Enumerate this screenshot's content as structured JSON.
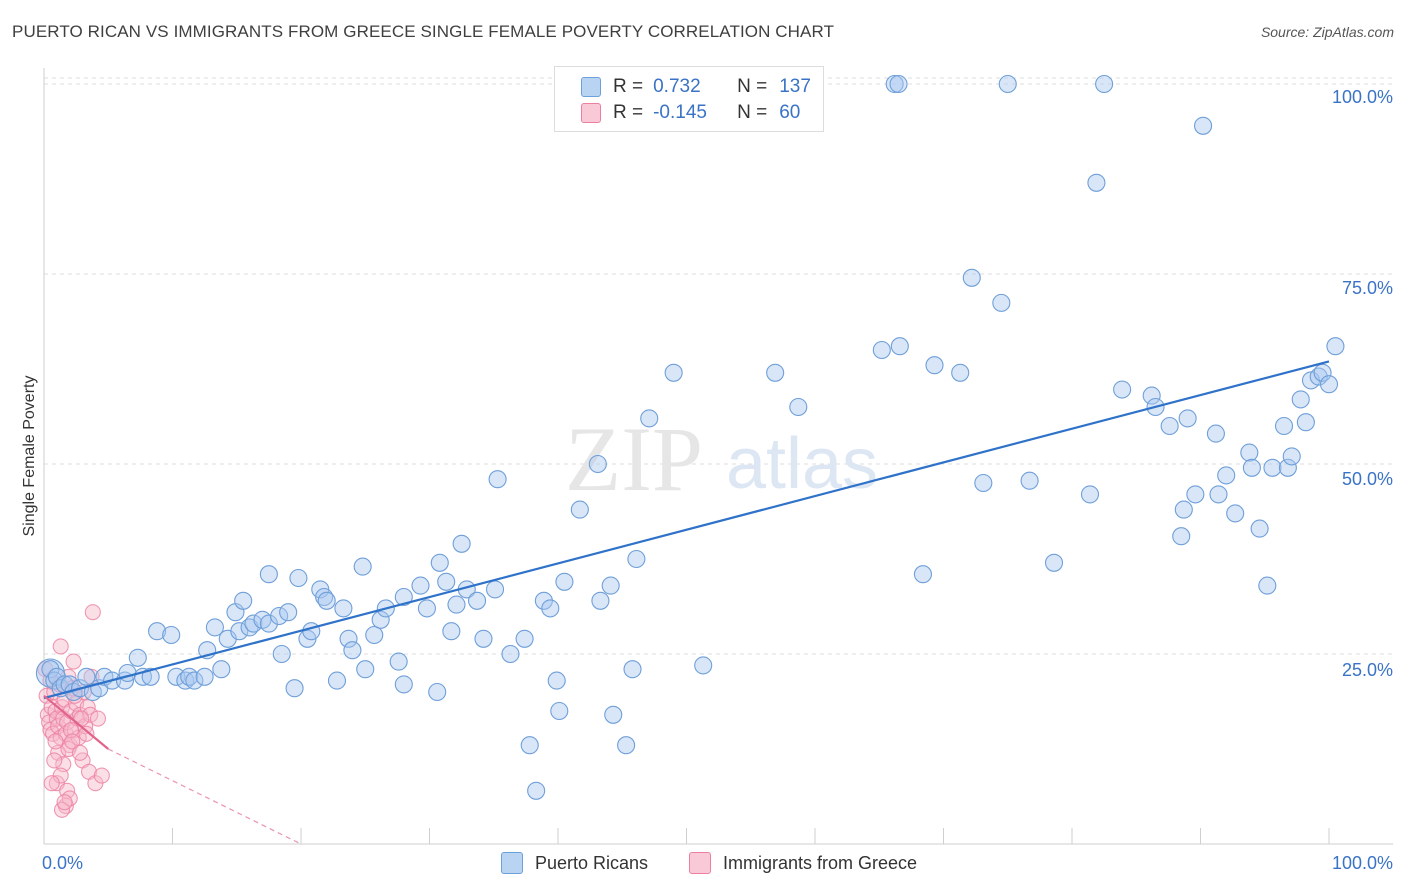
{
  "title": "PUERTO RICAN VS IMMIGRANTS FROM GREECE SINGLE FEMALE POVERTY CORRELATION CHART",
  "source": "Source: ZipAtlas.com",
  "watermark": {
    "zip": "ZIP",
    "atlas": "atlas"
  },
  "legend": {
    "series1": {
      "r_label": "R =",
      "r_value": "0.732",
      "n_label": "N =",
      "n_value": "137"
    },
    "series2": {
      "r_label": "R =",
      "r_value": "-0.145",
      "n_label": "N =",
      "n_value": "60"
    }
  },
  "colors": {
    "blue_fill": "#a9c8ef",
    "blue_stroke": "#6f9fd9",
    "blue_line": "#2f72c9",
    "pink_fill": "#f6b8ca",
    "pink_stroke": "#ec7fa0",
    "pink_line": "#e2648b",
    "axis_text": "#3a73c6"
  },
  "chart_data": {
    "type": "scatter",
    "title": "PUERTO RICAN VS IMMIGRANTS FROM GREECE SINGLE FEMALE POVERTY CORRELATION CHART",
    "xlabel": "",
    "ylabel": "Single Female Poverty",
    "xlim": [
      0,
      100
    ],
    "ylim": [
      0,
      103
    ],
    "x_tick_labels": [
      "0.0%",
      "100.0%"
    ],
    "y_ticks": [
      25,
      50,
      75,
      100
    ],
    "y_tick_labels": [
      "25.0%",
      "50.0%",
      "75.0%",
      "100.0%"
    ],
    "grid": "horizontal dashed",
    "legend_position": "bottom-center",
    "series": [
      {
        "name": "Puerto Ricans",
        "color": "#a9c8ef",
        "trend": {
          "x": [
            0,
            100
          ],
          "y": [
            19.2,
            63.5
          ]
        },
        "points": [
          [
            0.5,
            23
          ],
          [
            0.8,
            21.5
          ],
          [
            1,
            22
          ],
          [
            1.3,
            20.5
          ],
          [
            1.6,
            21
          ],
          [
            2,
            21
          ],
          [
            2.3,
            20
          ],
          [
            2.8,
            20.5
          ],
          [
            3.3,
            22
          ],
          [
            3.8,
            20
          ],
          [
            4.3,
            20.5
          ],
          [
            4.7,
            22
          ],
          [
            5.3,
            21.5
          ],
          [
            6.3,
            21.5
          ],
          [
            6.5,
            22.5
          ],
          [
            7.3,
            24.5
          ],
          [
            7.7,
            22
          ],
          [
            8.3,
            22
          ],
          [
            8.8,
            28
          ],
          [
            9.9,
            27.5
          ],
          [
            10.3,
            22
          ],
          [
            11,
            21.5
          ],
          [
            11.3,
            22
          ],
          [
            11.7,
            21.5
          ],
          [
            12.7,
            25.5
          ],
          [
            12.5,
            22
          ],
          [
            13.8,
            23
          ],
          [
            13.3,
            28.5
          ],
          [
            14.3,
            27
          ],
          [
            14.9,
            30.5
          ],
          [
            15.2,
            28
          ],
          [
            15.5,
            32
          ],
          [
            16,
            28.5
          ],
          [
            16.3,
            29
          ],
          [
            17,
            29.5
          ],
          [
            17.5,
            29
          ],
          [
            17.5,
            35.5
          ],
          [
            18.3,
            30
          ],
          [
            18.5,
            25
          ],
          [
            19,
            30.5
          ],
          [
            19.5,
            20.5
          ],
          [
            19.8,
            35
          ],
          [
            20.5,
            27
          ],
          [
            20.8,
            28
          ],
          [
            21.5,
            33.5
          ],
          [
            21.8,
            32.5
          ],
          [
            22,
            32
          ],
          [
            22.8,
            21.5
          ],
          [
            23.3,
            31
          ],
          [
            23.7,
            27
          ],
          [
            24,
            25.5
          ],
          [
            24.8,
            36.5
          ],
          [
            25,
            23
          ],
          [
            25.7,
            27.5
          ],
          [
            26.2,
            29.5
          ],
          [
            26.6,
            31
          ],
          [
            27.6,
            24
          ],
          [
            28,
            21
          ],
          [
            28,
            32.5
          ],
          [
            29.3,
            34
          ],
          [
            29.8,
            31
          ],
          [
            30.6,
            20
          ],
          [
            30.8,
            37
          ],
          [
            31.3,
            34.5
          ],
          [
            31.7,
            28
          ],
          [
            32.1,
            31.5
          ],
          [
            32.5,
            39.5
          ],
          [
            32.9,
            33.5
          ],
          [
            33.7,
            32
          ],
          [
            34.2,
            27
          ],
          [
            35.1,
            33.5
          ],
          [
            35.3,
            48
          ],
          [
            36.3,
            25
          ],
          [
            37.4,
            27
          ],
          [
            37.8,
            13
          ],
          [
            38.3,
            7
          ],
          [
            38.9,
            32
          ],
          [
            39.4,
            31
          ],
          [
            39.9,
            21.5
          ],
          [
            40.1,
            17.5
          ],
          [
            40.5,
            34.5
          ],
          [
            41.7,
            44
          ],
          [
            43.1,
            50
          ],
          [
            43.3,
            32
          ],
          [
            44.1,
            34
          ],
          [
            44.3,
            17
          ],
          [
            45.3,
            13
          ],
          [
            45.8,
            23
          ],
          [
            46.1,
            37.5
          ],
          [
            47.1,
            56
          ],
          [
            49,
            62
          ],
          [
            51.3,
            23.5
          ],
          [
            56.9,
            62
          ],
          [
            58.7,
            57.5
          ],
          [
            65.2,
            65
          ],
          [
            66.6,
            65.5
          ],
          [
            68.4,
            35.5
          ],
          [
            69.3,
            63
          ],
          [
            71.3,
            62
          ],
          [
            72.2,
            74.5
          ],
          [
            73.1,
            47.5
          ],
          [
            74.5,
            71.2
          ],
          [
            76.7,
            47.8
          ],
          [
            78.6,
            37
          ],
          [
            81.4,
            46
          ],
          [
            82.5,
            100
          ],
          [
            81.9,
            87
          ],
          [
            83.9,
            59.8
          ],
          [
            86.2,
            59
          ],
          [
            86.5,
            57.5
          ],
          [
            87.6,
            55
          ],
          [
            88.5,
            40.5
          ],
          [
            88.7,
            44
          ],
          [
            89,
            56
          ],
          [
            89.6,
            46
          ],
          [
            90.2,
            94.5
          ],
          [
            91.2,
            54
          ],
          [
            91.4,
            46
          ],
          [
            92,
            48.5
          ],
          [
            92.7,
            43.5
          ],
          [
            93.8,
            51.5
          ],
          [
            94,
            49.5
          ],
          [
            94.6,
            41.5
          ],
          [
            95.2,
            34
          ],
          [
            95.6,
            49.5
          ],
          [
            96.5,
            55
          ],
          [
            96.8,
            49.5
          ],
          [
            97.1,
            51
          ],
          [
            97.8,
            58.5
          ],
          [
            98.2,
            55.5
          ],
          [
            98.6,
            61
          ],
          [
            99.2,
            61.5
          ],
          [
            99.5,
            62
          ],
          [
            100,
            60.5
          ],
          [
            100.5,
            65.5
          ],
          [
            75,
            100
          ],
          [
            66.2,
            100
          ],
          [
            66.5,
            100
          ]
        ]
      },
      {
        "name": "Immigrants from Greece",
        "color": "#f6b8ca",
        "trend": {
          "x": [
            0,
            5
          ],
          "y": [
            19.5,
            12.5
          ]
        },
        "trend_extension": {
          "x": [
            5,
            20
          ],
          "y": [
            12.5,
            0
          ]
        },
        "points": [
          [
            0.1,
            23
          ],
          [
            0.2,
            19.5
          ],
          [
            0.3,
            17
          ],
          [
            0.4,
            16
          ],
          [
            0.5,
            15
          ],
          [
            0.5,
            21.5
          ],
          [
            0.6,
            18
          ],
          [
            0.7,
            14.5
          ],
          [
            0.8,
            20
          ],
          [
            0.9,
            17.5
          ],
          [
            1,
            16.5
          ],
          [
            1,
            8
          ],
          [
            1.1,
            15.5
          ],
          [
            1.2,
            21
          ],
          [
            1.3,
            14
          ],
          [
            1.3,
            26
          ],
          [
            1.4,
            18
          ],
          [
            1.5,
            16.5
          ],
          [
            1.6,
            19
          ],
          [
            1.7,
            14.5
          ],
          [
            1.8,
            16
          ],
          [
            1.9,
            22
          ],
          [
            2,
            13
          ],
          [
            2.1,
            17.5
          ],
          [
            2.2,
            20.5
          ],
          [
            2.3,
            24
          ],
          [
            2.4,
            15
          ],
          [
            2.5,
            18.5
          ],
          [
            2.6,
            16.5
          ],
          [
            2.7,
            14
          ],
          [
            2.8,
            17
          ],
          [
            3,
            11
          ],
          [
            3.1,
            20
          ],
          [
            3.2,
            15.5
          ],
          [
            3.4,
            18
          ],
          [
            3.5,
            9.5
          ],
          [
            3.6,
            17
          ],
          [
            3.7,
            22
          ],
          [
            3.8,
            30.5
          ],
          [
            4,
            8
          ],
          [
            4.2,
            16.5
          ],
          [
            4.5,
            9
          ],
          [
            1.1,
            12
          ],
          [
            1.5,
            10.5
          ],
          [
            1.7,
            5
          ],
          [
            1.8,
            7
          ],
          [
            1.9,
            12.5
          ],
          [
            2,
            6
          ],
          [
            2.1,
            15
          ],
          [
            2.2,
            13.5
          ],
          [
            0.8,
            11
          ],
          [
            0.9,
            13.5
          ],
          [
            1.3,
            9
          ],
          [
            1.4,
            4.5
          ],
          [
            1.6,
            5.5
          ],
          [
            2.4,
            19.5
          ],
          [
            2.8,
            12
          ],
          [
            3.3,
            14.5
          ],
          [
            0.6,
            8
          ],
          [
            2.9,
            16.5
          ]
        ]
      }
    ]
  },
  "axis": {
    "x_left": "0.0%",
    "x_right": "100.0%",
    "y_title": "Single Female Poverty",
    "y_ticks": [
      "100.0%",
      "75.0%",
      "50.0%",
      "25.0%"
    ]
  },
  "bottom_legend": {
    "item1": "Puerto Ricans",
    "item2": "Immigrants from Greece"
  }
}
